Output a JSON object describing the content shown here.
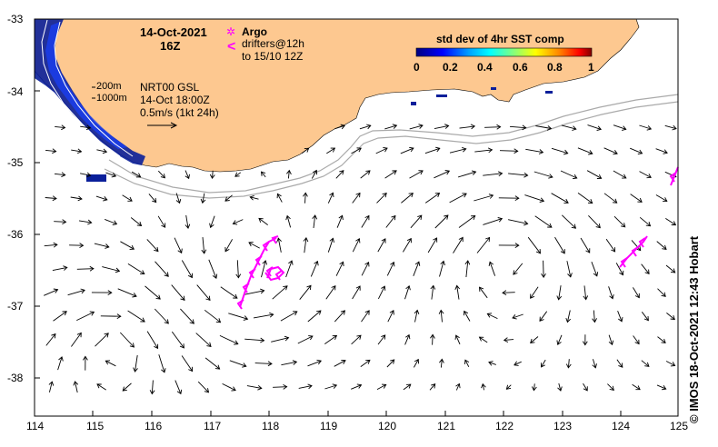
{
  "map": {
    "date": "14-Oct-2021",
    "time": "16Z",
    "x_ticks": [
      "114",
      "115",
      "116",
      "117",
      "118",
      "119",
      "120",
      "121",
      "122",
      "123",
      "124",
      "125"
    ],
    "y_ticks": [
      "-33",
      "-34",
      "-35",
      "-36",
      "-37",
      "-38"
    ],
    "lon_range": [
      114,
      125
    ],
    "lat_range": [
      -38.5,
      -33
    ],
    "land_color": "#fdc890",
    "isobaths": [
      "200m",
      "1000m"
    ],
    "current_source": "NRT00 GSL",
    "current_time": "14-Oct 18:00Z",
    "current_scale": "0.5m/s (1kt 24h)"
  },
  "legend": {
    "argo_label": "Argo",
    "argo_symbol": "✲",
    "argo_color": "#ff00ff",
    "drifter_symbol": "<",
    "drifter_line1": "drifters@12h",
    "drifter_line2": "to 15/10 12Z",
    "drifter_color": "#ff00ff"
  },
  "colorbar": {
    "title": "std dev of 4hr SST comp",
    "ticks": [
      "0",
      "0.2",
      "0.4",
      "0.6",
      "0.8",
      "1"
    ],
    "colors": [
      "#000080",
      "#0000ff",
      "#00a0ff",
      "#00ffff",
      "#80ff80",
      "#ffff00",
      "#ff8000",
      "#ff0000",
      "#800000"
    ]
  },
  "credit": "© IMOS 18-Oct-2021 12:43 Hobart"
}
